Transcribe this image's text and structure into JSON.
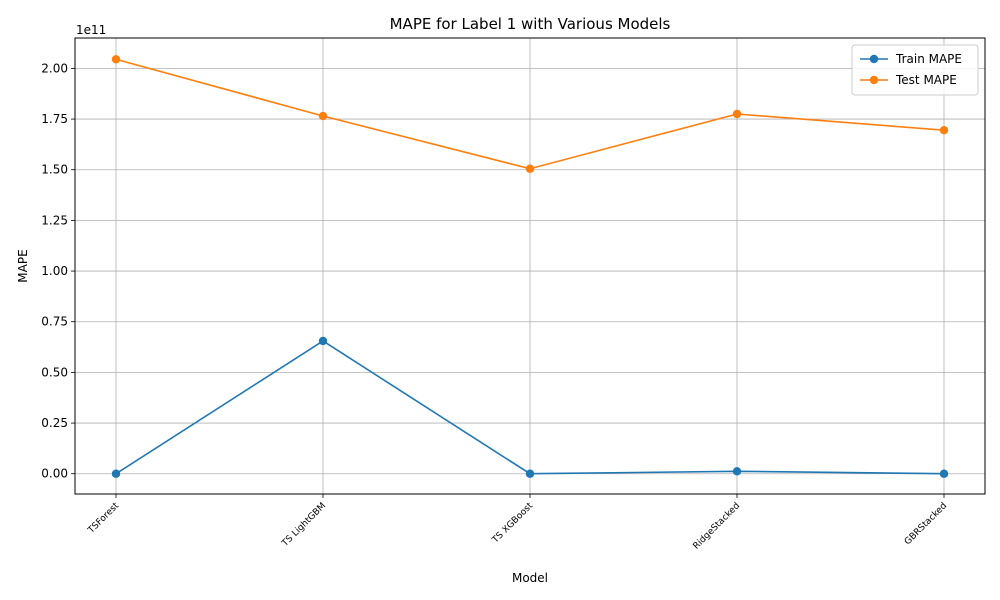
{
  "chart_data": {
    "type": "line",
    "title": "MAPE for Label 1 with Various Models",
    "xlabel": "Model",
    "ylabel": "MAPE",
    "scale_label": "1e11",
    "categories": [
      "TSForest",
      "TS LightGBM",
      "TS XGBoost",
      "RidgeStacked",
      "GBRStacked"
    ],
    "y_ticks": [
      "0.00",
      "0.25",
      "0.50",
      "0.75",
      "1.00",
      "1.25",
      "1.50",
      "1.75",
      "2.00"
    ],
    "ylim": [
      -0.1,
      2.15
    ],
    "grid": true,
    "legend_position": "top-right",
    "series": [
      {
        "name": "Train MAPE",
        "color": "#1f77b4",
        "values": [
          0.0,
          0.655,
          0.0,
          0.012,
          0.0
        ]
      },
      {
        "name": "Test MAPE",
        "color": "#ff7f0e",
        "values": [
          2.045,
          1.765,
          1.505,
          1.775,
          1.695
        ]
      }
    ]
  }
}
